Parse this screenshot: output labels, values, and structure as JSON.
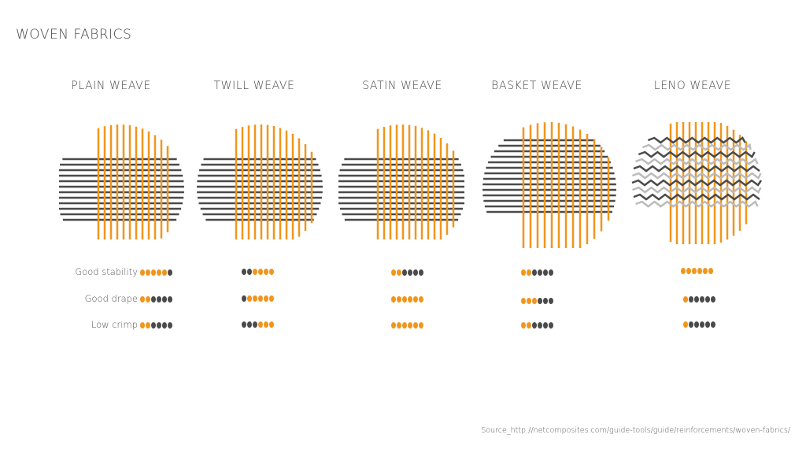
{
  "page": {
    "title": "WOVEN FABRICS"
  },
  "colors": {
    "orange": "#F0961E",
    "gray": "#4A4A4A",
    "light_gray": "#BBBBBB"
  },
  "criteria": [
    "Good stability",
    "Good drape",
    "Low crimp"
  ],
  "weaves": [
    {
      "name": "PLAIN WEAVE",
      "ratings": [
        [
          1,
          1,
          1,
          1,
          1,
          0
        ],
        [
          1,
          1,
          0,
          0,
          0,
          0
        ],
        [
          1,
          1,
          0,
          0,
          0,
          0
        ]
      ]
    },
    {
      "name": "TWILL WEAVE",
      "ratings": [
        [
          0,
          0,
          1,
          1,
          1,
          1
        ],
        [
          0,
          1,
          1,
          1,
          1,
          1
        ],
        [
          0,
          0,
          0,
          1,
          1,
          1
        ]
      ]
    },
    {
      "name": "SATIN WEAVE",
      "ratings": [
        [
          1,
          1,
          0,
          0,
          0,
          0
        ],
        [
          1,
          1,
          1,
          1,
          1,
          1
        ],
        [
          1,
          1,
          1,
          1,
          1,
          1
        ]
      ]
    },
    {
      "name": "BASKET WEAVE",
      "ratings": [
        [
          1,
          1,
          0,
          0,
          0,
          0
        ],
        [
          1,
          1,
          1,
          0,
          0,
          0
        ],
        [
          1,
          1,
          0,
          0,
          0,
          0
        ]
      ]
    },
    {
      "name": "LENO WEAVE",
      "ratings": [
        [
          1,
          1,
          1,
          1,
          1,
          1
        ],
        [
          1,
          0,
          0,
          0,
          0,
          0
        ],
        [
          1,
          0,
          0,
          0,
          0,
          0
        ]
      ]
    }
  ],
  "source": "Source_http://netcomposites.com/guide-tools/guide/reinforcements/woven-fabrics/"
}
